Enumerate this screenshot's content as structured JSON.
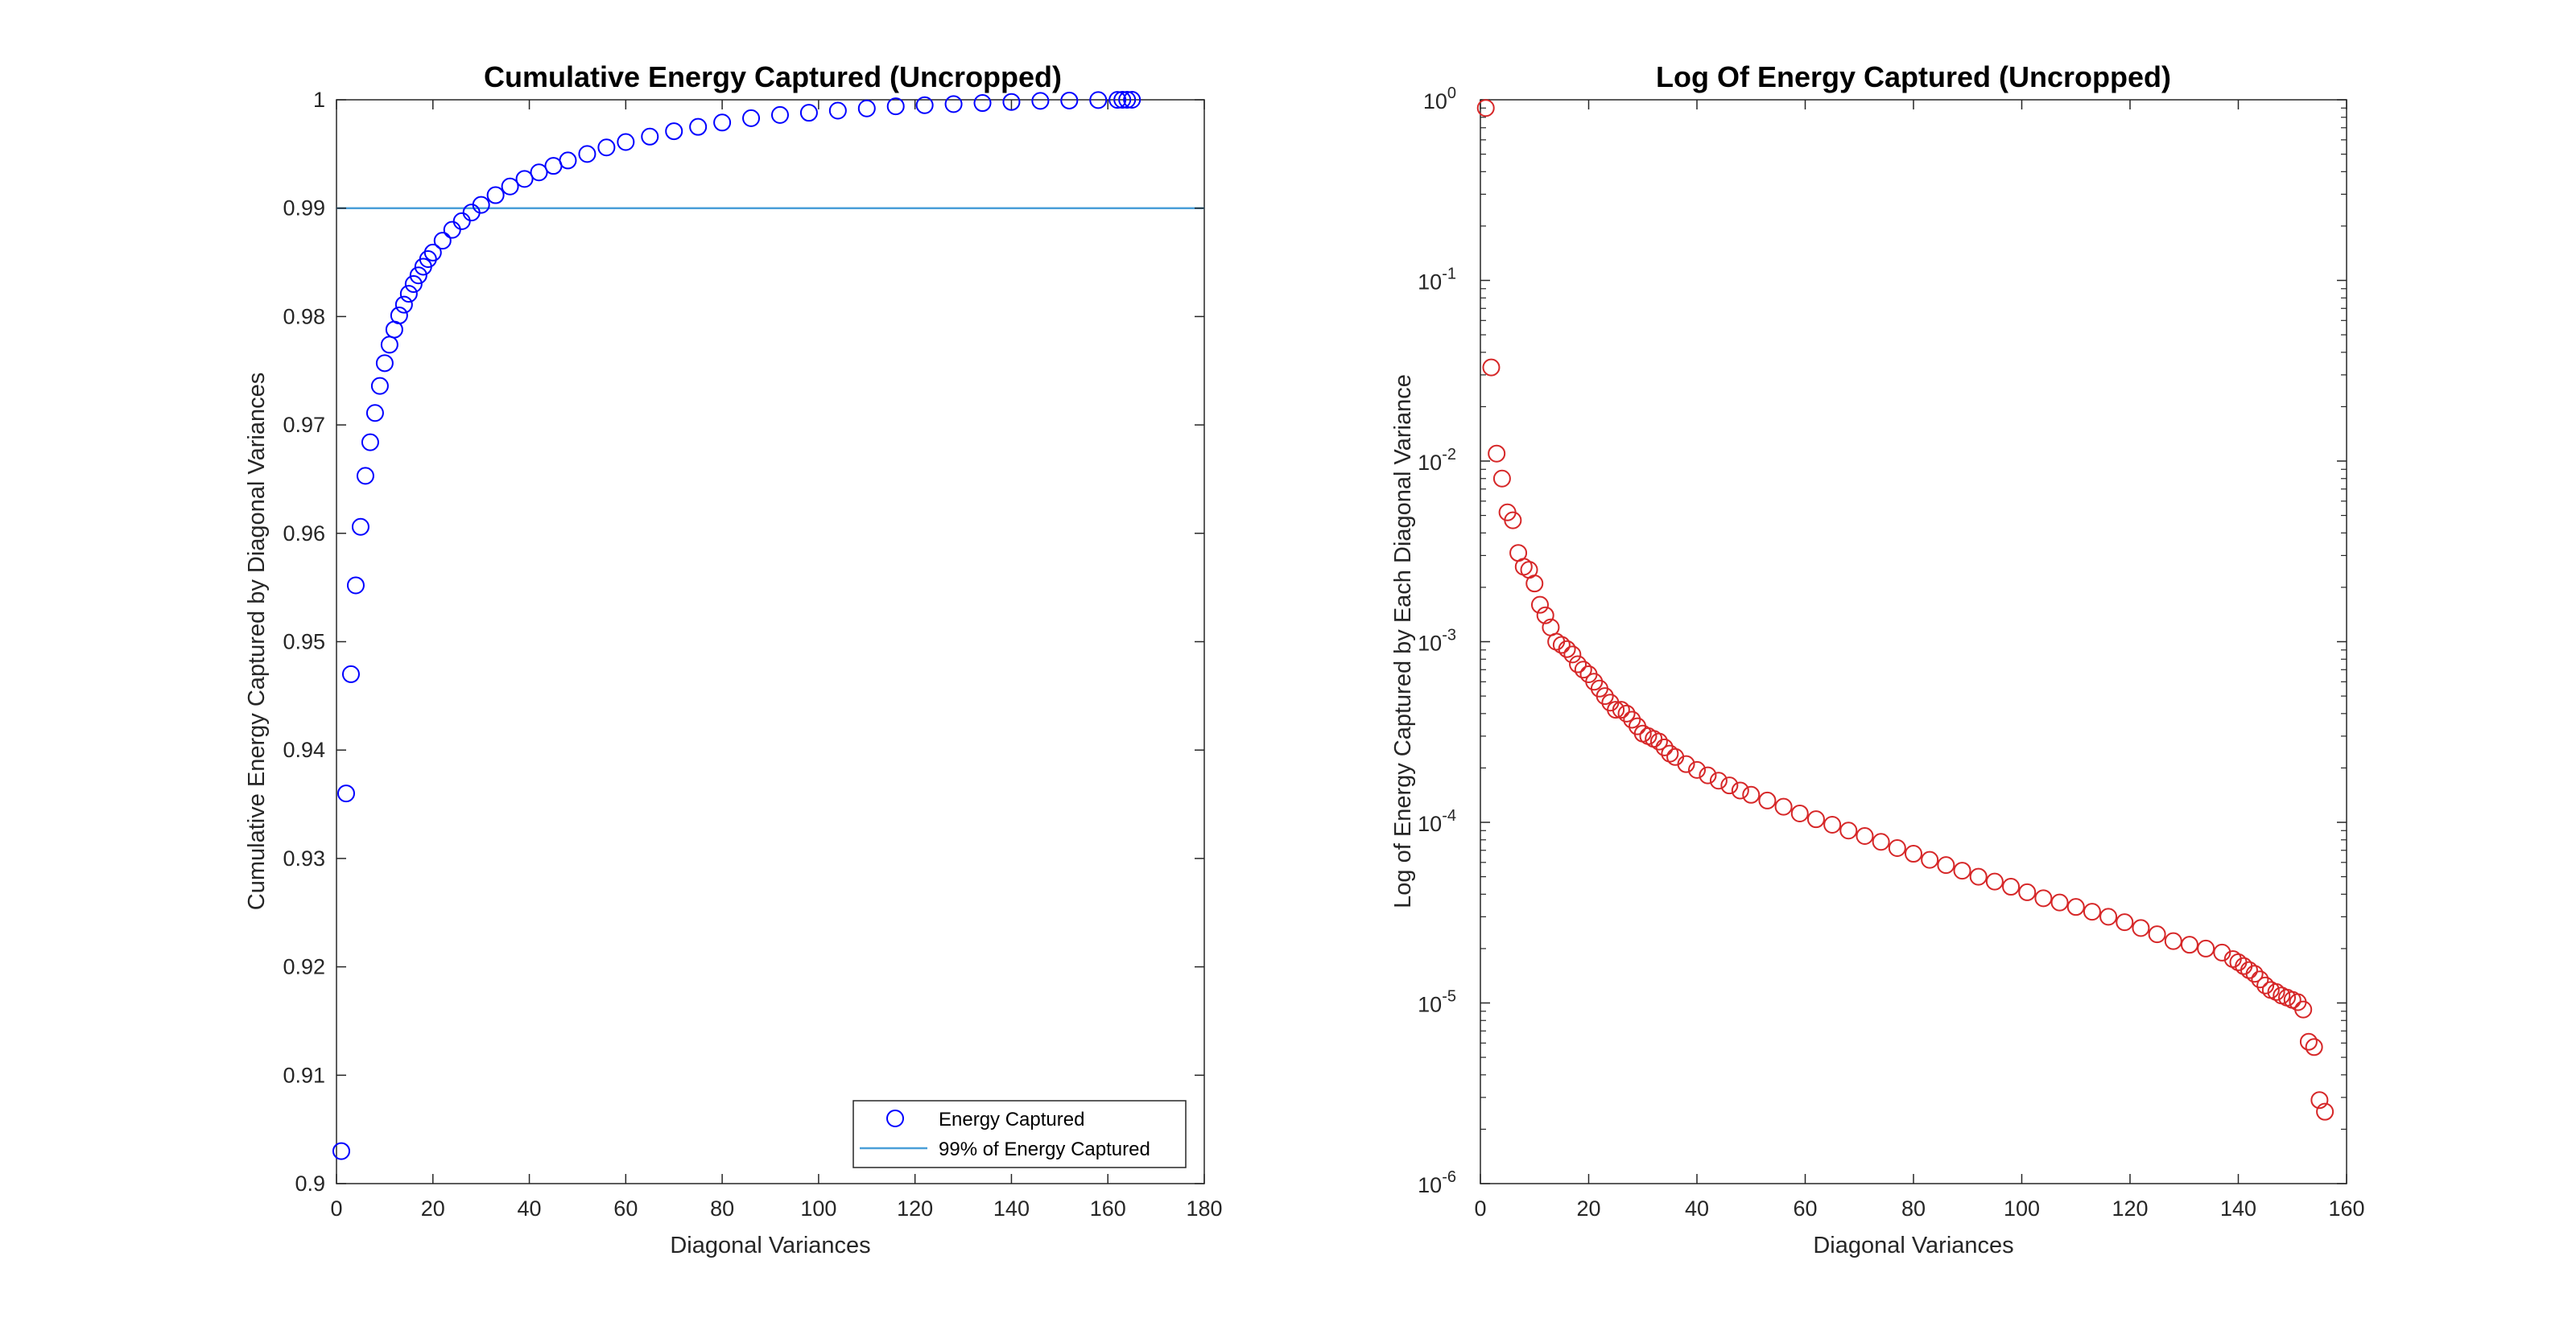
{
  "chart_data": [
    {
      "type": "scatter",
      "title": "Cumulative Energy Captured  (Uncropped)",
      "xlabel": "Diagonal Variances",
      "ylabel": "Cumulative Energy Captured by Diagonal Variances",
      "xlim": [
        0,
        180
      ],
      "ylim": [
        0.9,
        1.0
      ],
      "xticks": [
        0,
        20,
        40,
        60,
        80,
        100,
        120,
        140,
        160,
        180
      ],
      "xtick_labels": [
        "0",
        "20",
        "40",
        "60",
        "80",
        "100",
        "120",
        "140",
        "160",
        "180"
      ],
      "yticks": [
        0.9,
        0.91,
        0.92,
        0.93,
        0.94,
        0.95,
        0.96,
        0.97,
        0.98,
        0.99,
        1.0
      ],
      "ytick_labels": [
        "0.9",
        "0.91",
        "0.92",
        "0.93",
        "0.94",
        "0.95",
        "0.96",
        "0.97",
        "0.98",
        "0.99",
        "1"
      ],
      "grid": false,
      "legend": "bottom-right",
      "series": [
        {
          "name": "Energy Captured",
          "marker": "circle-open",
          "color": "#0000ff",
          "x": [
            1,
            2,
            3,
            4,
            5,
            6,
            7,
            8,
            9,
            10,
            11,
            12,
            13,
            14,
            15,
            16,
            17,
            18,
            19,
            20,
            22,
            24,
            26,
            28,
            30,
            33,
            36,
            39,
            42,
            45,
            48,
            52,
            56,
            60,
            65,
            70,
            75,
            80,
            86,
            92,
            98,
            104,
            110,
            116,
            122,
            128,
            134,
            140,
            146,
            152,
            158,
            162,
            163,
            164,
            165
          ],
          "y": [
            0.903,
            0.936,
            0.947,
            0.9552,
            0.9606,
            0.9653,
            0.9684,
            0.9711,
            0.9736,
            0.9757,
            0.9774,
            0.9788,
            0.9801,
            0.9811,
            0.9821,
            0.983,
            0.9838,
            0.9846,
            0.9853,
            0.9859,
            0.987,
            0.988,
            0.9888,
            0.9896,
            0.9903,
            0.9912,
            0.992,
            0.9927,
            0.9933,
            0.9939,
            0.9944,
            0.995,
            0.9956,
            0.9961,
            0.9966,
            0.9971,
            0.9975,
            0.9979,
            0.9983,
            0.9986,
            0.9988,
            0.999,
            0.9992,
            0.9994,
            0.9995,
            0.9996,
            0.9997,
            0.9998,
            0.9999,
            0.99993,
            0.99997,
            0.99999,
            1.0,
            1.0,
            1.0
          ]
        },
        {
          "name": "99% of Energy Captured",
          "marker": "line",
          "color": "#4a9fd8",
          "x": [
            0,
            180
          ],
          "y": [
            0.99,
            0.99
          ]
        }
      ]
    },
    {
      "type": "scatter",
      "title": "Log Of Energy Captured (Uncropped)",
      "xlabel": "Diagonal Variances",
      "ylabel": "Log of Energy Captured by Each Diagonal Variance",
      "xlim": [
        0,
        160
      ],
      "ylim": [
        1e-06,
        1
      ],
      "yscale": "log",
      "xticks": [
        0,
        20,
        40,
        60,
        80,
        100,
        120,
        140,
        160
      ],
      "xtick_labels": [
        "0",
        "20",
        "40",
        "60",
        "80",
        "100",
        "120",
        "140",
        "160"
      ],
      "yticks": [
        1e-06,
        1e-05,
        0.0001,
        0.001,
        0.01,
        0.1,
        1
      ],
      "ytick_labels": [
        {
          "base": "10",
          "exp": "-6"
        },
        {
          "base": "10",
          "exp": "-5"
        },
        {
          "base": "10",
          "exp": "-4"
        },
        {
          "base": "10",
          "exp": "-3"
        },
        {
          "base": "10",
          "exp": "-2"
        },
        {
          "base": "10",
          "exp": "-1"
        },
        {
          "base": "10",
          "exp": "0"
        }
      ],
      "grid": false,
      "series": [
        {
          "marker": "circle-open",
          "color": "#d62728",
          "x": [
            1,
            2,
            3,
            4,
            5,
            6,
            7,
            8,
            9,
            10,
            11,
            12,
            13,
            14,
            15,
            16,
            17,
            18,
            19,
            20,
            21,
            22,
            23,
            24,
            25,
            26,
            27,
            28,
            29,
            30,
            31,
            32,
            33,
            34,
            35,
            36,
            38,
            40,
            42,
            44,
            46,
            48,
            50,
            53,
            56,
            59,
            62,
            65,
            68,
            71,
            74,
            77,
            80,
            83,
            86,
            89,
            92,
            95,
            98,
            101,
            104,
            107,
            110,
            113,
            116,
            119,
            122,
            125,
            128,
            131,
            134,
            137,
            139,
            140,
            141,
            142,
            143,
            144,
            145,
            146,
            147,
            148,
            149,
            150,
            151,
            152,
            153,
            154,
            155,
            156
          ],
          "y": [
            0.9,
            0.033,
            0.011,
            0.008,
            0.0052,
            0.0047,
            0.0031,
            0.0026,
            0.0025,
            0.0021,
            0.0016,
            0.0014,
            0.0012,
            0.001,
            0.00096,
            0.00091,
            0.00085,
            0.00075,
            0.0007,
            0.00066,
            0.0006,
            0.00055,
            0.0005,
            0.00046,
            0.00042,
            0.00042,
            0.0004,
            0.00037,
            0.00034,
            0.00031,
            0.0003,
            0.00029,
            0.00028,
            0.00026,
            0.00024,
            0.00023,
            0.00021,
            0.000195,
            0.000182,
            0.00017,
            0.00016,
            0.00015,
            0.000142,
            0.000132,
            0.000122,
            0.000112,
            0.000104,
            9.7e-05,
            9e-05,
            8.4e-05,
            7.8e-05,
            7.2e-05,
            6.7e-05,
            6.2e-05,
            5.8e-05,
            5.4e-05,
            5e-05,
            4.7e-05,
            4.4e-05,
            4.1e-05,
            3.8e-05,
            3.6e-05,
            3.4e-05,
            3.2e-05,
            3e-05,
            2.8e-05,
            2.6e-05,
            2.4e-05,
            2.2e-05,
            2.1e-05,
            2e-05,
            1.9e-05,
            1.75e-05,
            1.68e-05,
            1.6e-05,
            1.52e-05,
            1.45e-05,
            1.35e-05,
            1.25e-05,
            1.18e-05,
            1.15e-05,
            1.1e-05,
            1.07e-05,
            1.04e-05,
            1.01e-05,
            9.2e-06,
            6.1e-06,
            5.7e-06,
            2.9e-06,
            2.5e-06
          ]
        }
      ]
    }
  ]
}
